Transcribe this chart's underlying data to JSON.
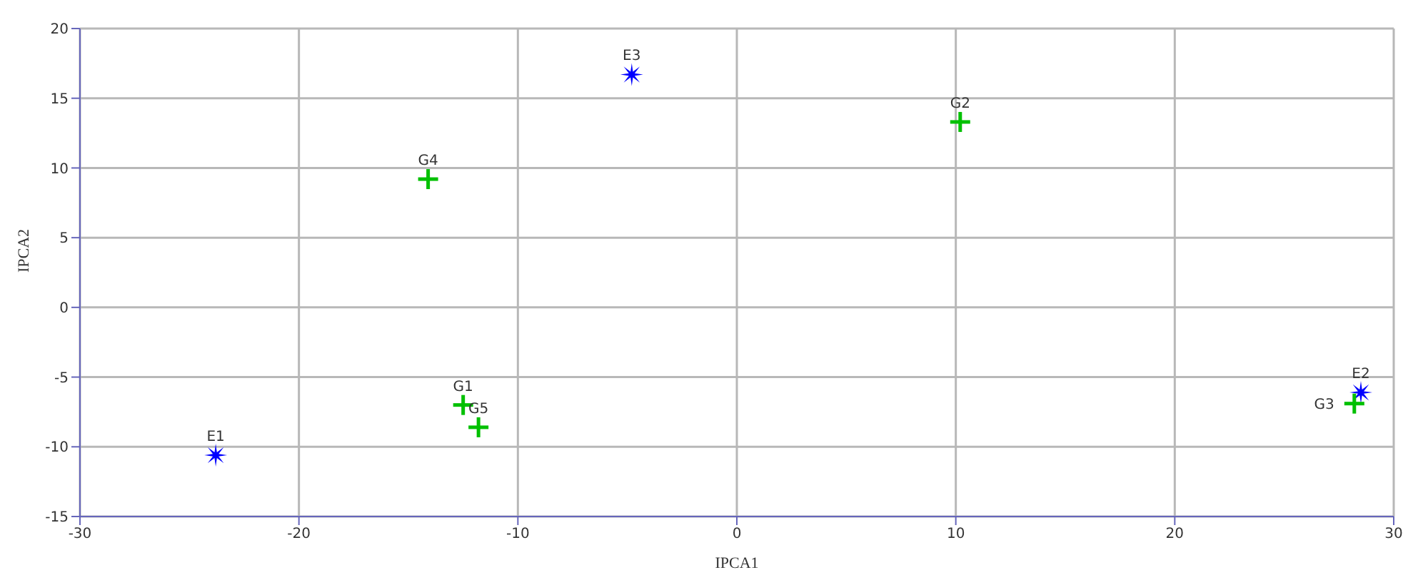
{
  "chart_data": {
    "type": "scatter",
    "xlabel": "IPCA1",
    "ylabel": "IPCA2",
    "xlim": [
      -30,
      30
    ],
    "xticks": [
      -30,
      -20,
      -10,
      0,
      10,
      20,
      30
    ],
    "ylim": [
      -15,
      20
    ],
    "yticks": [
      -15,
      -10,
      -5,
      0,
      5,
      10,
      15,
      20
    ],
    "grid": true,
    "series": [
      {
        "color": "#0000ff",
        "marker": "star",
        "x": [
          -23.8,
          28.5,
          -4.8
        ],
        "values": [
          -10.6,
          -6.1,
          16.7
        ]
      },
      {
        "color": "#00c000",
        "marker": "cross",
        "x": [
          -12.5,
          10.2,
          28.2,
          -14.1,
          -11.8
        ],
        "values": [
          -7.0,
          13.3,
          -6.9,
          9.2,
          -8.6
        ]
      }
    ],
    "annotations": [
      {
        "text": "E1",
        "x": -23.8,
        "y": -10.6
      },
      {
        "text": "E2",
        "x": 28.5,
        "y": -6.1
      },
      {
        "text": "E3",
        "x": -4.8,
        "y": 16.7
      },
      {
        "text": "G1",
        "x": -12.5,
        "y": -7.0
      },
      {
        "text": "G2",
        "x": 10.2,
        "y": 13.3
      },
      {
        "text": "G3",
        "x": 28.2,
        "y": -6.9
      },
      {
        "text": "G4",
        "x": -14.1,
        "y": 9.2
      },
      {
        "text": "G5",
        "x": -11.8,
        "y": -8.6
      }
    ]
  }
}
